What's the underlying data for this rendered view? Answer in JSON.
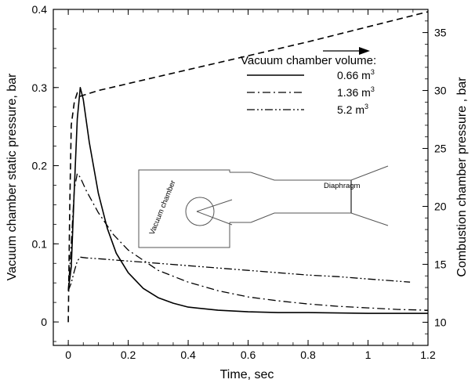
{
  "chart_data": {
    "type": "line",
    "xlabel": "Time, sec",
    "ylabel_left": "Vacuum chamber static pressure, bar",
    "ylabel_right": "Combustion chamber pressure , bar",
    "xlim": [
      -0.05,
      1.2
    ],
    "ylim_left": [
      -0.03,
      0.4
    ],
    "ylim_right": [
      8.0,
      37.0
    ],
    "x_ticks": [
      "0",
      "0.2",
      "0.4",
      "0.6",
      "0.8",
      "1",
      "1.2"
    ],
    "y_left_ticks": [
      "0",
      "0.1",
      "0.2",
      "0.3",
      "0.4"
    ],
    "y_right_ticks": [
      "10",
      "15",
      "20",
      "25",
      "30",
      "35"
    ],
    "grid": false,
    "legend": {
      "title": "Vacuum chamber volume:",
      "placement": "top-right",
      "entries": [
        {
          "label": "0.66 m",
          "sup": "3",
          "style": "solid"
        },
        {
          "label": "1.36 m",
          "sup": "3",
          "style": "dashdot"
        },
        {
          "label": "5.2 m",
          "sup": "3",
          "style": "dashdotdot"
        }
      ]
    },
    "series": [
      {
        "name": "0.66 m3",
        "axis": "left",
        "style": "solid",
        "x": [
          0.0,
          0.01,
          0.02,
          0.03,
          0.04,
          0.05,
          0.07,
          0.1,
          0.13,
          0.16,
          0.2,
          0.25,
          0.3,
          0.35,
          0.4,
          0.5,
          0.6,
          0.7,
          0.8,
          1.0,
          1.2
        ],
        "y": [
          0.04,
          0.07,
          0.17,
          0.26,
          0.3,
          0.285,
          0.23,
          0.165,
          0.12,
          0.088,
          0.063,
          0.043,
          0.031,
          0.024,
          0.019,
          0.015,
          0.013,
          0.012,
          0.012,
          0.011,
          0.011
        ]
      },
      {
        "name": "1.36 m3",
        "axis": "left",
        "style": "dashdot",
        "x": [
          0.0,
          0.01,
          0.02,
          0.03,
          0.04,
          0.06,
          0.1,
          0.15,
          0.2,
          0.3,
          0.4,
          0.5,
          0.6,
          0.7,
          0.8,
          0.9,
          1.0,
          1.1,
          1.2
        ],
        "y": [
          0.04,
          0.1,
          0.17,
          0.19,
          0.185,
          0.168,
          0.14,
          0.112,
          0.092,
          0.066,
          0.051,
          0.04,
          0.032,
          0.027,
          0.023,
          0.02,
          0.018,
          0.016,
          0.015
        ]
      },
      {
        "name": "5.2 m3",
        "axis": "left",
        "style": "dashdotdot",
        "x": [
          0.0,
          0.01,
          0.02,
          0.03,
          0.04,
          0.06,
          0.1,
          0.2,
          0.3,
          0.4,
          0.5,
          0.6,
          0.7,
          0.8,
          0.9,
          1.0,
          1.14
        ],
        "y": [
          0.04,
          0.05,
          0.065,
          0.078,
          0.083,
          0.082,
          0.081,
          0.078,
          0.075,
          0.072,
          0.069,
          0.066,
          0.063,
          0.06,
          0.058,
          0.055,
          0.051
        ]
      },
      {
        "name": "Combustion chamber pressure",
        "axis": "right",
        "style": "dashed",
        "x": [
          0.0,
          0.005,
          0.01,
          0.02,
          0.03,
          0.04,
          0.1,
          0.2,
          0.4,
          0.6,
          0.8,
          1.0,
          1.2
        ],
        "y": [
          10.0,
          20.0,
          27.0,
          29.0,
          29.8,
          29.5,
          30.0,
          30.6,
          31.8,
          33.0,
          34.2,
          35.5,
          36.8
        ]
      }
    ],
    "annotations": {
      "arrow_direction": "right",
      "inset_labels": {
        "vacuum_chamber": "Vacuum chamber",
        "diaphragm": "Diaphragm"
      }
    }
  }
}
